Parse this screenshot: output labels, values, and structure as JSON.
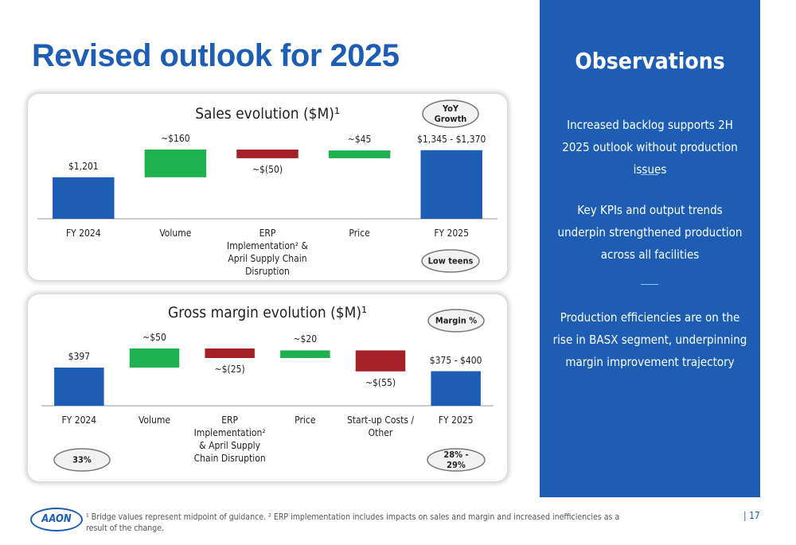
{
  "title": "Revised outlook for 2025",
  "chart_data": [
    {
      "type": "waterfall",
      "title": "Sales evolution ($M)¹",
      "categories": [
        "FY 2024",
        "Volume",
        "ERP Implementation² & April Supply Chain Disruption",
        "Price",
        "FY 2025"
      ],
      "measure": [
        "absolute",
        "relative",
        "relative",
        "relative",
        "absolute"
      ],
      "values": [
        1201,
        160,
        -50,
        45,
        1357.5
      ],
      "value_labels": [
        "$1,201",
        "~$160",
        "~$(50)",
        "~$45",
        "$1,345 - $1,370"
      ],
      "colors": {
        "total": "#1d5db3",
        "increase": "#1fb04f",
        "decrease": "#a32127"
      },
      "annotations": [
        "YoY Growth",
        "Low teens"
      ]
    },
    {
      "type": "waterfall",
      "title": "Gross margin evolution ($M)¹",
      "categories": [
        "FY 2024",
        "Volume",
        "ERP Implementation² & April Supply Chain Disruption",
        "Price",
        "Start-up Costs / Other",
        "FY 2025"
      ],
      "measure": [
        "absolute",
        "relative",
        "relative",
        "relative",
        "relative",
        "absolute"
      ],
      "values": [
        397,
        50,
        -25,
        20,
        -55,
        387.5
      ],
      "value_labels": [
        "$397",
        "~$50",
        "~$(25)",
        "~$20",
        "~$(55)",
        "$375 - $400"
      ],
      "colors": {
        "total": "#1d5db3",
        "increase": "#1fb04f",
        "decrease": "#a32127"
      },
      "annotations": [
        "Margin %",
        "33%",
        "28% - 29%"
      ]
    }
  ],
  "observations": {
    "heading": "Observations",
    "items": [
      "Increased backlog supports 2H 2025 outlook without production issues",
      "Key KPIs and output trends underpin strengthened production across all facilities",
      "Production efficiencies are on the rise in BASX segment, underpinning margin improvement trajectory"
    ]
  },
  "footnote": "¹ Bridge values represent midpoint of guidance.  ² ERP implementation includes impacts on sales and margin and increased inefficiencies as a result of the change.",
  "logo": "AAON",
  "page_number": "| 17"
}
